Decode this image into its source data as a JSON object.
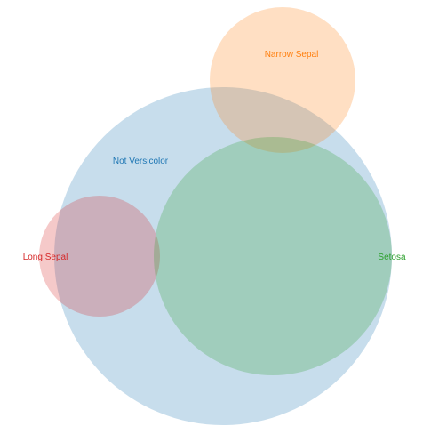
{
  "diagram": {
    "type": "venn",
    "sets": [
      {
        "id": "not_versicolor",
        "label": "Not Versicolor",
        "color": "#1f77b4",
        "fill_opacity": 0.25
      },
      {
        "id": "narrow_sepal",
        "label": "Narrow Sepal",
        "color": "#ff7f0e",
        "fill_opacity": 0.25
      },
      {
        "id": "long_sepal",
        "label": "Long Sepal",
        "color": "#d62728",
        "fill_opacity": 0.25
      },
      {
        "id": "setosa",
        "label": "Setosa",
        "color": "#2ca02c",
        "fill_opacity": 0.25
      }
    ]
  }
}
